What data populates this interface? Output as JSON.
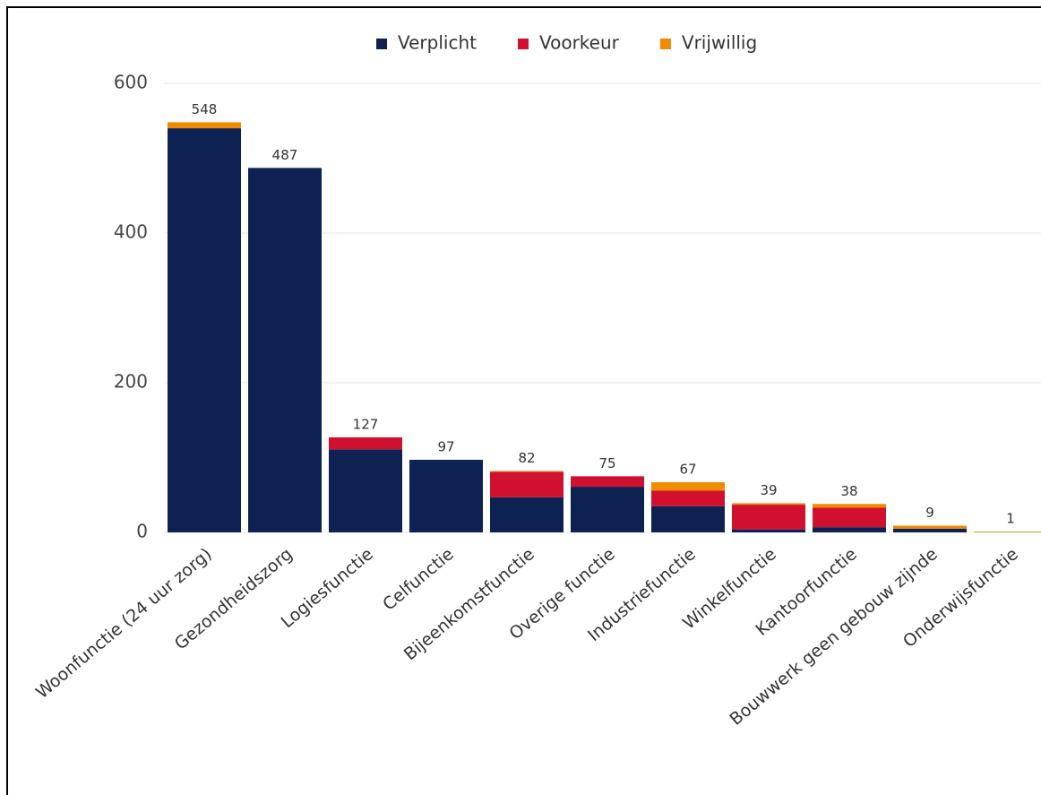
{
  "chart_data": {
    "type": "stacked_bar",
    "categories": [
      "Woonfunctie (24 uur zorg)",
      "Gezondheidszorg",
      "Logiesfunctie",
      "Celfunctie",
      "Bijeenkomstfunctie",
      "Overige functie",
      "Industriefunctie",
      "Winkelfunctie",
      "Kantoorfunctie",
      "Bouwwerk geen gebouw zijnde",
      "Onderwijsfunctie"
    ],
    "series": [
      {
        "name": "Verplicht",
        "color": "#0d2152",
        "values": [
          540,
          487,
          111,
          97,
          47,
          61,
          35,
          4,
          7,
          5,
          0
        ]
      },
      {
        "name": "Voorkeur",
        "color": "#d1102f",
        "values": [
          0,
          0,
          16,
          0,
          34,
          14,
          21,
          33,
          26,
          0,
          0
        ]
      },
      {
        "name": "Vrijwillig",
        "color": "#f08a00",
        "values": [
          8,
          0,
          0,
          0,
          1,
          0,
          11,
          2,
          5,
          4,
          1
        ]
      }
    ],
    "totals": [
      548,
      487,
      127,
      97,
      82,
      75,
      67,
      39,
      38,
      9,
      1
    ],
    "ylim": [
      0,
      600
    ],
    "yticks": [
      0,
      200,
      400,
      600
    ],
    "grid": true
  }
}
